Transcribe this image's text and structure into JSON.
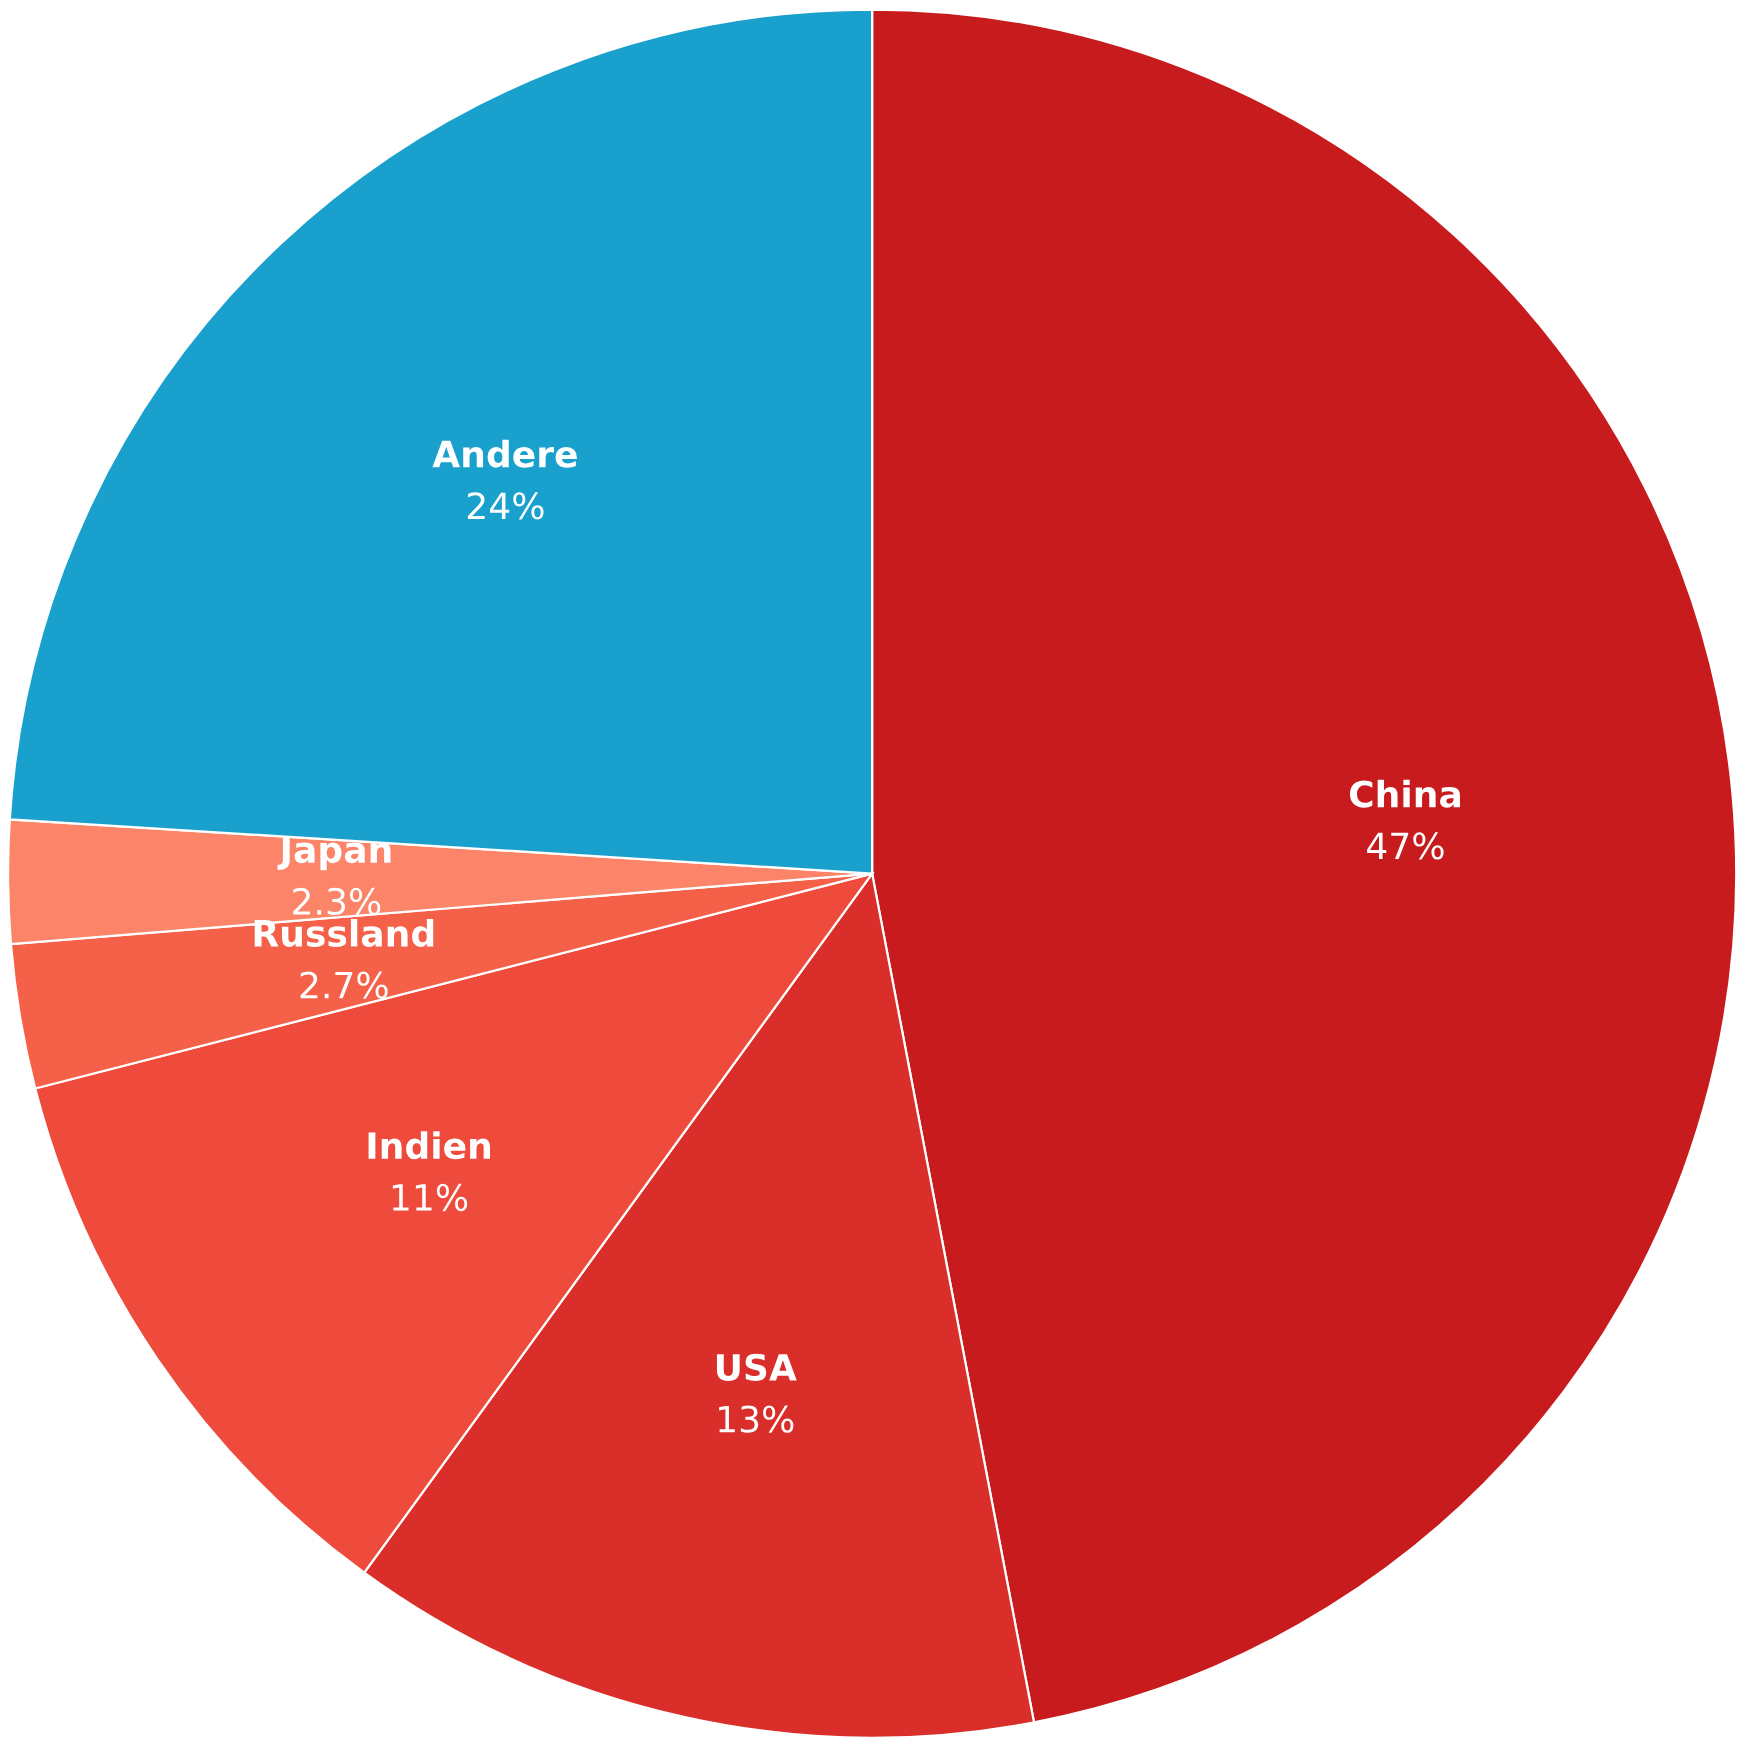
{
  "chart_data": {
    "type": "pie",
    "categories": [
      "China",
      "USA",
      "Indien",
      "Russland",
      "Japan",
      "Andere"
    ],
    "values": [
      47,
      13,
      11,
      2.7,
      2.3,
      24
    ],
    "value_labels": [
      "47%",
      "13%",
      "11%",
      "2.7%",
      "2.3%",
      "24%"
    ],
    "colors": [
      "#c71b1e",
      "#d92e29",
      "#ef4b3c",
      "#f56049",
      "#fb8469",
      "#1aa0cd"
    ],
    "legend": false
  }
}
